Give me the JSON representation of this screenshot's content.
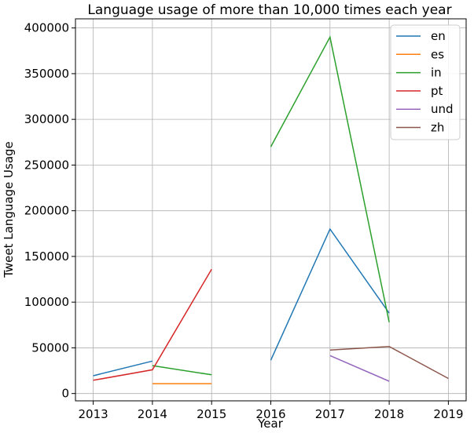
{
  "chart_data": {
    "type": "line",
    "title": "Language usage of more than 10,000 times each year",
    "xlabel": "Year",
    "ylabel": "Tweet Language Usage",
    "x_ticks": [
      2013,
      2014,
      2015,
      2016,
      2017,
      2018,
      2019
    ],
    "y_ticks": [
      0,
      50000,
      100000,
      150000,
      200000,
      250000,
      300000,
      350000,
      400000
    ],
    "y_tick_labels": [
      "0",
      "50000",
      "100000",
      "150000",
      "200000",
      "250000",
      "300000",
      "350000",
      "400000"
    ],
    "xlim": [
      2012.7,
      2019.3
    ],
    "ylim": [
      -8000,
      410000
    ],
    "grid": true,
    "legend_position": "top-right",
    "series": [
      {
        "name": "en",
        "color": "#1f77b4",
        "segments": [
          [
            [
              2013,
              19500
            ],
            [
              2014,
              35500
            ]
          ],
          [
            [
              2016,
              36500
            ],
            [
              2017,
              180000
            ],
            [
              2018,
              88000
            ]
          ]
        ]
      },
      {
        "name": "es",
        "color": "#ff7f0e",
        "segments": [
          [
            [
              2014,
              10800
            ],
            [
              2015,
              10800
            ]
          ]
        ]
      },
      {
        "name": "in",
        "color": "#2ca02c",
        "segments": [
          [
            [
              2014,
              30500
            ],
            [
              2015,
              20500
            ]
          ],
          [
            [
              2016,
              270000
            ],
            [
              2017,
              390000
            ],
            [
              2018,
              78000
            ]
          ]
        ]
      },
      {
        "name": "pt",
        "color": "#d62728",
        "segments": [
          [
            [
              2013,
              14500
            ],
            [
              2014,
              26000
            ],
            [
              2015,
              136000
            ]
          ]
        ]
      },
      {
        "name": "und",
        "color": "#9467bd",
        "segments": [
          [
            [
              2017,
              41500
            ],
            [
              2018,
              13500
            ]
          ]
        ]
      },
      {
        "name": "zh",
        "color": "#8c564b",
        "segments": [
          [
            [
              2017,
              47500
            ],
            [
              2018,
              51500
            ],
            [
              2019,
              16500
            ]
          ]
        ]
      }
    ]
  }
}
